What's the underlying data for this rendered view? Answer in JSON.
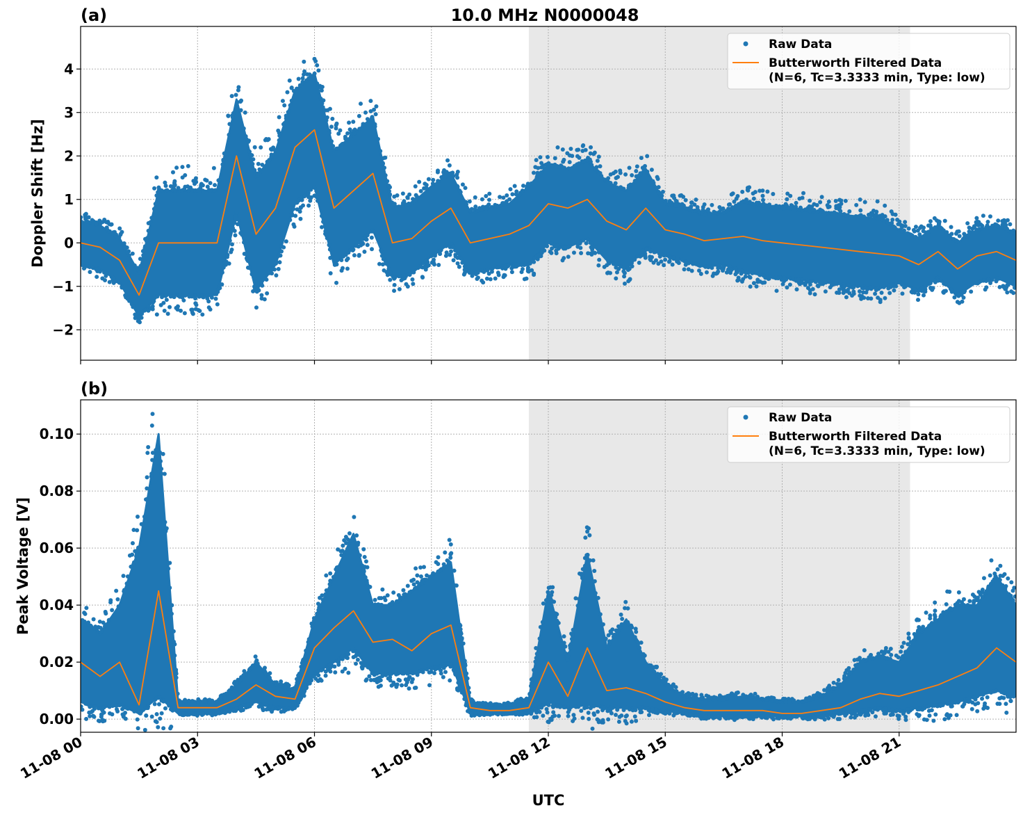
{
  "title": "10.0 MHz N0000048",
  "xlabel": "UTC",
  "x_tick_labels": [
    "11-08 00",
    "11-08 03",
    "11-08 06",
    "11-08 09",
    "11-08 12",
    "11-08 15",
    "11-08 18",
    "11-08 21"
  ],
  "x_tick_values_hours": [
    0,
    3,
    6,
    9,
    12,
    15,
    18,
    21
  ],
  "xlim_hours": [
    0,
    24
  ],
  "shaded_interval_hours": [
    11.5,
    21.28
  ],
  "colors": {
    "raw": "#1f77b4",
    "filtered": "#ff7f0e",
    "shade": "#e8e8e8",
    "grid": "#b0b0b0"
  },
  "chart_data": [
    {
      "type": "scatter",
      "panel_label": "(a)",
      "ylabel": "Doppler Shift [Hz]",
      "ylim": [
        -2.7,
        4.98
      ],
      "y_ticks": [
        -2,
        -1,
        0,
        1,
        2,
        3,
        4
      ],
      "y_tick_labels": [
        "−2",
        "−1",
        "0",
        "1",
        "2",
        "3",
        "4"
      ],
      "grid": true,
      "legend_position": "top-right",
      "legend": [
        "Raw Data",
        "Butterworth Filtered Data",
        "(N=6, Tc=3.3333 min, Type: low)"
      ],
      "x_hours": [
        0,
        0.5,
        1,
        1.5,
        2,
        2.5,
        3,
        3.5,
        4,
        4.5,
        5,
        5.5,
        6,
        6.5,
        7,
        7.5,
        8,
        8.5,
        9,
        9.5,
        10,
        10.5,
        11,
        11.5,
        12,
        12.5,
        13,
        13.5,
        14,
        14.5,
        15,
        15.5,
        16,
        16.5,
        17,
        17.5,
        18,
        18.5,
        19,
        19.5,
        20,
        20.5,
        21,
        21.5,
        22,
        22.5,
        23,
        23.5,
        24
      ],
      "filtered": [
        0,
        -0.1,
        -0.4,
        -1.2,
        0,
        0,
        0,
        0,
        2.0,
        0.2,
        0.8,
        2.2,
        2.6,
        0.8,
        1.2,
        1.6,
        0,
        0.1,
        0.5,
        0.8,
        0,
        0.1,
        0.2,
        0.4,
        0.9,
        0.8,
        1.0,
        0.5,
        0.3,
        0.8,
        0.3,
        0.2,
        0.05,
        0.1,
        0.15,
        0.05,
        0,
        -0.05,
        -0.1,
        -0.15,
        -0.2,
        -0.25,
        -0.3,
        -0.5,
        -0.2,
        -0.6,
        -0.3,
        -0.2,
        -0.4
      ],
      "raw_max": [
        0.5,
        0.4,
        0.1,
        -0.7,
        1.2,
        1.2,
        1.2,
        1.2,
        3.3,
        1.5,
        2.1,
        3.5,
        3.9,
        2.1,
        2.5,
        2.9,
        0.8,
        0.9,
        1.3,
        1.6,
        0.7,
        0.8,
        0.9,
        1.3,
        1.8,
        1.7,
        1.9,
        1.4,
        1.2,
        1.7,
        0.9,
        0.8,
        0.65,
        0.7,
        0.95,
        0.85,
        0.8,
        0.75,
        0.7,
        0.65,
        0.6,
        0.55,
        0.3,
        0.1,
        0.4,
        0,
        0.3,
        0.4,
        0.2
      ],
      "raw_min": [
        -0.5,
        -0.6,
        -0.9,
        -1.7,
        -1.2,
        -1.2,
        -1.2,
        -1.2,
        0.7,
        -1.1,
        -0.5,
        0.9,
        1.3,
        -0.5,
        -0.1,
        0.3,
        -0.8,
        -0.7,
        -0.3,
        0,
        -0.7,
        -0.6,
        -0.5,
        -0.5,
        0,
        -0.1,
        0.1,
        -0.4,
        -0.6,
        -0.1,
        -0.3,
        -0.4,
        -0.55,
        -0.5,
        -0.65,
        -0.75,
        -0.8,
        -0.85,
        -0.9,
        -0.95,
        -1.0,
        -1.05,
        -0.9,
        -1.1,
        -0.8,
        -1.2,
        -0.9,
        -0.8,
        -1.0
      ]
    },
    {
      "type": "scatter",
      "panel_label": "(b)",
      "ylabel": "Peak Voltage [V]",
      "ylim": [
        -0.0046,
        0.112
      ],
      "y_ticks": [
        0,
        0.02,
        0.04,
        0.06,
        0.08,
        0.1
      ],
      "y_tick_labels": [
        "0.00",
        "0.02",
        "0.04",
        "0.06",
        "0.08",
        "0.10"
      ],
      "grid": true,
      "legend_position": "top-right",
      "legend": [
        "Raw Data",
        "Butterworth Filtered Data",
        "(N=6, Tc=3.3333 min, Type: low)"
      ],
      "x_hours": [
        0,
        0.5,
        1,
        1.5,
        2,
        2.5,
        3,
        3.5,
        4,
        4.5,
        5,
        5.5,
        6,
        6.5,
        7,
        7.5,
        8,
        8.5,
        9,
        9.5,
        10,
        10.5,
        11,
        11.5,
        12,
        12.5,
        13,
        13.5,
        14,
        14.5,
        15,
        15.5,
        16,
        16.5,
        17,
        17.5,
        18,
        18.5,
        19,
        19.5,
        20,
        20.5,
        21,
        21.5,
        22,
        22.5,
        23,
        23.5,
        24
      ],
      "filtered": [
        0.02,
        0.015,
        0.02,
        0.005,
        0.045,
        0.004,
        0.004,
        0.004,
        0.007,
        0.012,
        0.008,
        0.007,
        0.025,
        0.032,
        0.038,
        0.027,
        0.028,
        0.024,
        0.03,
        0.033,
        0.004,
        0.003,
        0.003,
        0.004,
        0.02,
        0.008,
        0.025,
        0.01,
        0.011,
        0.009,
        0.006,
        0.004,
        0.003,
        0.003,
        0.003,
        0.003,
        0.002,
        0.002,
        0.003,
        0.004,
        0.007,
        0.009,
        0.008,
        0.01,
        0.012,
        0.015,
        0.018,
        0.025,
        0.02
      ],
      "raw_max": [
        0.035,
        0.03,
        0.04,
        0.06,
        0.1,
        0.006,
        0.006,
        0.006,
        0.012,
        0.02,
        0.012,
        0.01,
        0.035,
        0.05,
        0.065,
        0.04,
        0.04,
        0.045,
        0.05,
        0.055,
        0.006,
        0.005,
        0.005,
        0.007,
        0.045,
        0.02,
        0.058,
        0.025,
        0.035,
        0.02,
        0.012,
        0.008,
        0.007,
        0.007,
        0.008,
        0.007,
        0.006,
        0.006,
        0.008,
        0.012,
        0.02,
        0.022,
        0.02,
        0.03,
        0.035,
        0.04,
        0.04,
        0.05,
        0.04
      ],
      "raw_min": [
        0.006,
        0.004,
        0.005,
        0.002,
        0.008,
        0.002,
        0.002,
        0.002,
        0.004,
        0.006,
        0.004,
        0.004,
        0.016,
        0.02,
        0.025,
        0.016,
        0.016,
        0.016,
        0.018,
        0.02,
        0.002,
        0.002,
        0.002,
        0.002,
        0.006,
        0.004,
        0.005,
        0.004,
        0.004,
        0.004,
        0.003,
        0.002,
        0.001,
        0.001,
        0.001,
        0.001,
        0.001,
        0.001,
        0.001,
        0.002,
        0.003,
        0.004,
        0.003,
        0.004,
        0.005,
        0.006,
        0.008,
        0.01,
        0.008
      ]
    }
  ]
}
